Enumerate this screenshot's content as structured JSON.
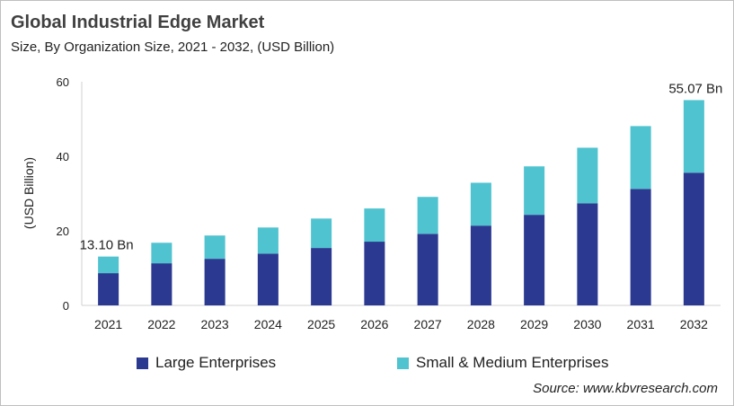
{
  "title": "Global Industrial Edge Market",
  "subtitle": "Size, By Organization Size, 2021 - 2032, (USD Billion)",
  "source": "Source: www.kbvresearch.com",
  "chart_data": {
    "type": "bar",
    "stacked": true,
    "title": "Global Industrial Edge Market",
    "subtitle": "Size, By Organization Size, 2021 - 2032, (USD Billion)",
    "xlabel": "",
    "ylabel": "(USD Billion)",
    "ylim": [
      0,
      60
    ],
    "yticks": [
      0,
      20,
      40,
      60
    ],
    "grid": false,
    "legend_placement": "bottom",
    "categories": [
      "2021",
      "2022",
      "2023",
      "2024",
      "2025",
      "2026",
      "2027",
      "2028",
      "2029",
      "2030",
      "2031",
      "2032"
    ],
    "series": [
      {
        "name": "Large Enterprises",
        "color": "#2b3990",
        "values": [
          8.65,
          11.3,
          12.5,
          13.9,
          15.4,
          17.1,
          19.2,
          21.4,
          24.3,
          27.4,
          31.25,
          35.6
        ]
      },
      {
        "name": "Small & Medium Enterprises",
        "color": "#4fc3cf",
        "values": [
          4.45,
          5.5,
          6.25,
          7.0,
          7.9,
          8.9,
          9.9,
          11.5,
          13.0,
          14.9,
          16.85,
          19.47
        ]
      }
    ],
    "annotations": [
      {
        "category": "2021",
        "text": "13.10 Bn"
      },
      {
        "category": "2032",
        "text": "55.07 Bn"
      }
    ]
  }
}
